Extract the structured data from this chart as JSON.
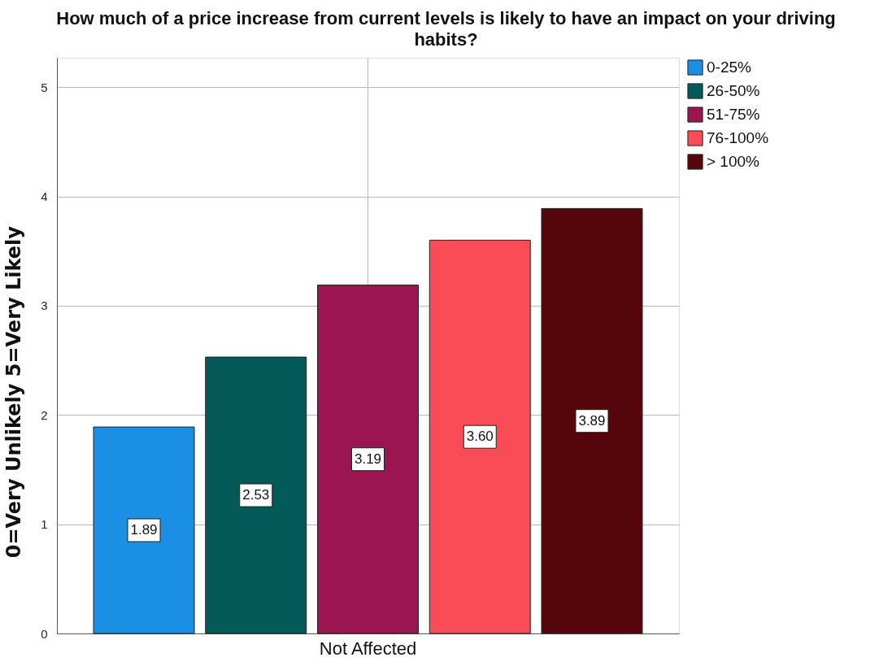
{
  "chart_data": {
    "type": "bar",
    "title": "How much of a price increase from current levels is likely to have an impact on your driving habits?",
    "ylabel": "0=Very Unlikely 5=Very Likely",
    "categories": [
      "Not Affected"
    ],
    "series": [
      {
        "name": "0-25%",
        "color": "#1a8fe3",
        "values": [
          1.89
        ],
        "value_labels": [
          "1.89"
        ]
      },
      {
        "name": "26-50%",
        "color": "#045a58",
        "values": [
          2.53
        ],
        "value_labels": [
          "2.53"
        ]
      },
      {
        "name": "51-75%",
        "color": "#9b1651",
        "values": [
          3.19
        ],
        "value_labels": [
          "3.19"
        ]
      },
      {
        "name": "76-100%",
        "color": "#f94c56",
        "values": [
          3.6
        ],
        "value_labels": [
          "3.60"
        ]
      },
      {
        "name": "> 100%",
        "color": "#55060a",
        "values": [
          3.89
        ],
        "value_labels": [
          "3.89"
        ]
      }
    ],
    "ylim": [
      0,
      5.27
    ],
    "yticks": [
      0,
      1,
      2,
      3,
      4,
      5
    ],
    "grid": true,
    "legend": "top right"
  }
}
